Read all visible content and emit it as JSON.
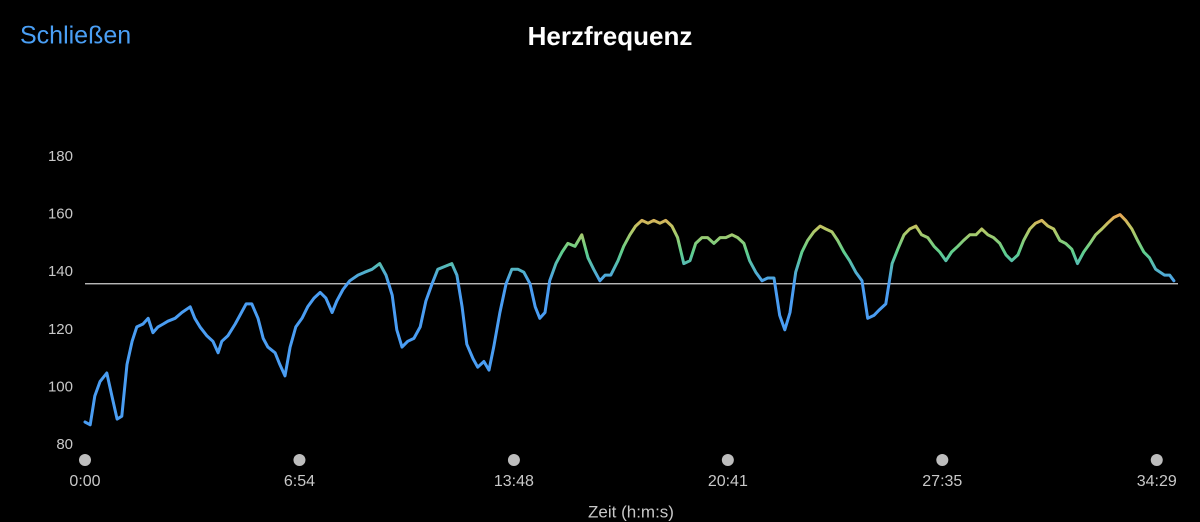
{
  "header": {
    "close_button": "Schließen"
  },
  "chart_data": {
    "type": "line",
    "title": "Herzfrequenz",
    "x_label": "Zeit (h:m:s)",
    "x": [
      0,
      10,
      19,
      29,
      42,
      52,
      62,
      71,
      81,
      91,
      100,
      112,
      122,
      131,
      141,
      151,
      160,
      174,
      187,
      203,
      212,
      222,
      235,
      247,
      257,
      264,
      276,
      290,
      299,
      311,
      322,
      334,
      344,
      353,
      367,
      376,
      386,
      396,
      407,
      419,
      430,
      442,
      454,
      465,
      477,
      486,
      498,
      511,
      527,
      540,
      554,
      569,
      581,
      593,
      602,
      612,
      623,
      635,
      647,
      658,
      670,
      681,
      695,
      708,
      718,
      728,
      737,
      749,
      758,
      770,
      780,
      789,
      801,
      813,
      824,
      836,
      847,
      859,
      869,
      878,
      888,
      897,
      909,
      921,
      932,
      946,
      959,
      971,
      982,
      994,
      1004,
      1015,
      1029,
      1040,
      1052,
      1063,
      1075,
      1087,
      1098,
      1110,
      1121,
      1133,
      1144,
      1156,
      1168,
      1179,
      1191,
      1202,
      1214,
      1226,
      1237,
      1249,
      1260,
      1272,
      1283,
      1295,
      1307,
      1318,
      1330,
      1341,
      1351,
      1361,
      1372,
      1384,
      1395,
      1407,
      1419,
      1430,
      1442,
      1453,
      1465,
      1476,
      1488,
      1500,
      1511,
      1523,
      1534,
      1546,
      1558,
      1569,
      1581,
      1592,
      1604,
      1615,
      1627,
      1639,
      1650,
      1662,
      1673,
      1685,
      1696,
      1708,
      1720,
      1731,
      1743,
      1754,
      1766,
      1778,
      1789,
      1801,
      1812,
      1824,
      1835,
      1847,
      1859,
      1870,
      1882,
      1893,
      1905,
      1916,
      1928,
      1940,
      1951,
      1963,
      1974,
      1986,
      1998,
      2009,
      2021,
      2032,
      2044,
      2055,
      2067,
      2084,
      2094,
      2102
    ],
    "values": [
      88,
      87,
      97,
      102,
      105,
      97,
      89,
      90,
      108,
      116,
      121,
      122,
      124,
      119,
      121,
      122,
      123,
      124,
      126,
      128,
      124,
      121,
      118,
      116,
      112,
      116,
      118,
      122,
      125,
      129,
      129,
      124,
      117,
      114,
      112,
      108,
      104,
      114,
      121,
      124,
      128,
      131,
      133,
      131,
      126,
      130,
      134,
      137,
      139,
      140,
      141,
      143,
      139,
      132,
      120,
      114,
      116,
      117,
      121,
      130,
      136,
      141,
      142,
      143,
      139,
      128,
      115,
      110,
      107,
      109,
      106,
      114,
      126,
      136,
      141,
      141,
      140,
      136,
      128,
      124,
      126,
      137,
      143,
      147,
      150,
      149,
      153,
      145,
      141,
      137,
      139,
      139,
      144,
      149,
      153,
      156,
      158,
      157,
      158,
      157,
      158,
      156,
      152,
      143,
      144,
      150,
      152,
      152,
      150,
      152,
      152,
      153,
      152,
      150,
      144,
      140,
      137,
      138,
      138,
      125,
      120,
      126,
      140,
      147,
      151,
      154,
      156,
      155,
      154,
      151,
      147,
      144,
      140,
      137,
      124,
      125,
      127,
      129,
      143,
      148,
      153,
      155,
      156,
      153,
      152,
      149,
      147,
      144,
      147,
      149,
      151,
      153,
      153,
      155,
      153,
      152,
      150,
      146,
      144,
      146,
      151,
      155,
      157,
      158,
      156,
      155,
      151,
      150,
      148,
      143,
      147,
      150,
      153,
      155,
      157,
      159,
      160,
      158,
      155,
      151,
      147,
      145,
      141,
      139,
      139,
      137
    ],
    "xlim": [
      0,
      2110
    ],
    "xticks": [
      {
        "value": 0,
        "label": "0:00"
      },
      {
        "value": 414,
        "label": "6:54"
      },
      {
        "value": 828,
        "label": "13:48"
      },
      {
        "value": 1241,
        "label": "20:41"
      },
      {
        "value": 1655,
        "label": "27:35"
      },
      {
        "value": 2069,
        "label": "34:29"
      }
    ],
    "ylim": [
      80,
      180
    ],
    "yticks": [
      80,
      100,
      120,
      140,
      160,
      180
    ],
    "reference_line": 136,
    "color_scale": [
      {
        "value": 136,
        "color": "#4a9df2"
      },
      {
        "value": 147,
        "color": "#5fcf8c"
      },
      {
        "value": 155,
        "color": "#b9c865"
      },
      {
        "value": 161,
        "color": "#f0a050"
      }
    ]
  }
}
